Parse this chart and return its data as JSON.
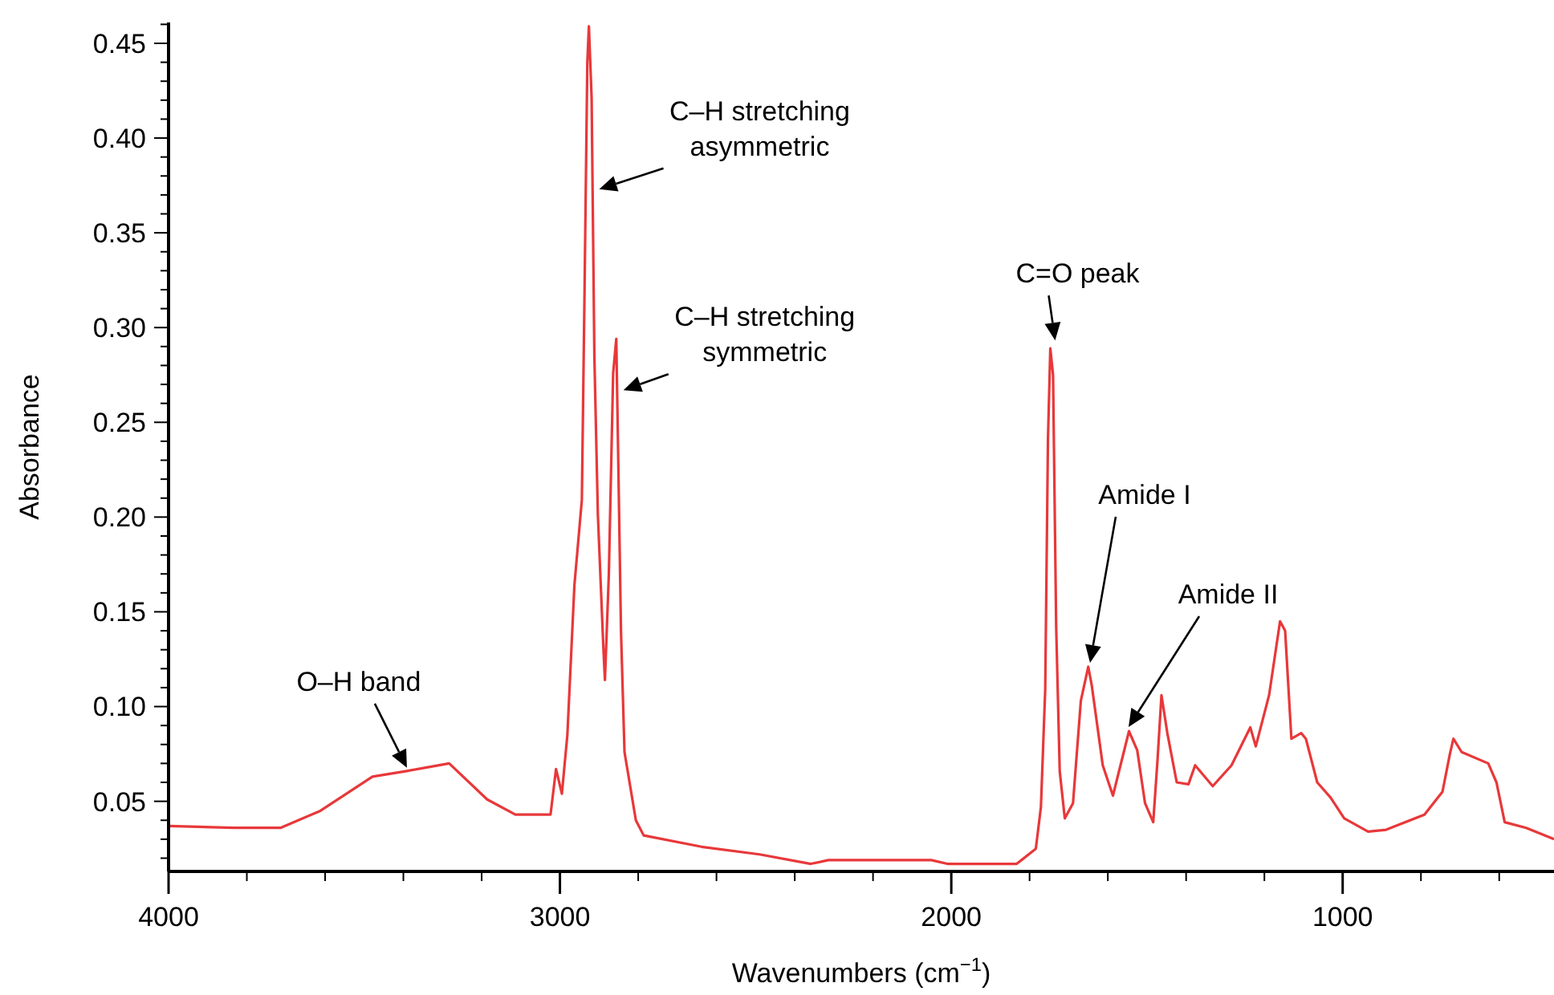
{
  "chart_data": {
    "type": "line",
    "xlabel": "Wavenumbers (cm$^{−1}$)",
    "ylabel": "Absorbance",
    "xlim": [
      4000,
      460
    ],
    "ylim": [
      0.013,
      0.461
    ],
    "xticks": [
      {
        "value": 4000,
        "label": "4000"
      },
      {
        "value": 3800,
        "label": null
      },
      {
        "value": 3600,
        "label": null
      },
      {
        "value": 3400,
        "label": null
      },
      {
        "value": 3200,
        "label": null
      },
      {
        "value": 3000,
        "label": "3000"
      },
      {
        "value": 2800,
        "label": null
      },
      {
        "value": 2600,
        "label": null
      },
      {
        "value": 2400,
        "label": null
      },
      {
        "value": 2200,
        "label": null
      },
      {
        "value": 2000,
        "label": "2000"
      },
      {
        "value": 1800,
        "label": null
      },
      {
        "value": 1600,
        "label": null
      },
      {
        "value": 1400,
        "label": null
      },
      {
        "value": 1200,
        "label": null
      },
      {
        "value": 1000,
        "label": "1000"
      },
      {
        "value": 800,
        "label": null
      },
      {
        "value": 600,
        "label": null
      }
    ],
    "yticks": [
      {
        "value": 0.02,
        "label": null
      },
      {
        "value": 0.03,
        "label": null
      },
      {
        "value": 0.04,
        "label": null
      },
      {
        "value": 0.05,
        "label": "0.05"
      },
      {
        "value": 0.06,
        "label": null
      },
      {
        "value": 0.07,
        "label": null
      },
      {
        "value": 0.08,
        "label": null
      },
      {
        "value": 0.09,
        "label": null
      },
      {
        "value": 0.1,
        "label": "0.10"
      },
      {
        "value": 0.11,
        "label": null
      },
      {
        "value": 0.12,
        "label": null
      },
      {
        "value": 0.13,
        "label": null
      },
      {
        "value": 0.14,
        "label": null
      },
      {
        "value": 0.15,
        "label": "0.15"
      },
      {
        "value": 0.16,
        "label": null
      },
      {
        "value": 0.17,
        "label": null
      },
      {
        "value": 0.18,
        "label": null
      },
      {
        "value": 0.19,
        "label": null
      },
      {
        "value": 0.2,
        "label": "0.20"
      },
      {
        "value": 0.21,
        "label": null
      },
      {
        "value": 0.22,
        "label": null
      },
      {
        "value": 0.23,
        "label": null
      },
      {
        "value": 0.24,
        "label": null
      },
      {
        "value": 0.25,
        "label": "0.25"
      },
      {
        "value": 0.26,
        "label": null
      },
      {
        "value": 0.27,
        "label": null
      },
      {
        "value": 0.28,
        "label": null
      },
      {
        "value": 0.29,
        "label": null
      },
      {
        "value": 0.3,
        "label": "0.30"
      },
      {
        "value": 0.31,
        "label": null
      },
      {
        "value": 0.32,
        "label": null
      },
      {
        "value": 0.33,
        "label": null
      },
      {
        "value": 0.34,
        "label": null
      },
      {
        "value": 0.35,
        "label": "0.35"
      },
      {
        "value": 0.36,
        "label": null
      },
      {
        "value": 0.37,
        "label": null
      },
      {
        "value": 0.38,
        "label": null
      },
      {
        "value": 0.39,
        "label": null
      },
      {
        "value": 0.4,
        "label": "0.40"
      },
      {
        "value": 0.41,
        "label": null
      },
      {
        "value": 0.42,
        "label": null
      },
      {
        "value": 0.43,
        "label": null
      },
      {
        "value": 0.44,
        "label": null
      },
      {
        "value": 0.45,
        "label": "0.45"
      },
      {
        "value": 0.46,
        "label": null
      }
    ],
    "grid": false,
    "marker": "none",
    "line_style": "solid",
    "series": [
      {
        "color": "#e8383a",
        "x": [
          4000,
          3833,
          3714,
          3612,
          3479,
          3391,
          3283,
          3186,
          3114,
          3024,
          3010,
          2995,
          2981,
          2963,
          2944,
          2937,
          2930,
          2926,
          2919,
          2912,
          2903,
          2889,
          2885,
          2875,
          2864,
          2856,
          2852,
          2844,
          2835,
          2806,
          2786,
          2638,
          2490,
          2359,
          2314,
          2051,
          2010,
          1833,
          1784,
          1771,
          1760,
          1753,
          1747,
          1740,
          1732,
          1723,
          1710,
          1689,
          1669,
          1650,
          1641,
          1613,
          1587,
          1546,
          1525,
          1505,
          1484,
          1473,
          1463,
          1448,
          1424,
          1394,
          1377,
          1332,
          1284,
          1236,
          1222,
          1188,
          1160,
          1147,
          1131,
          1106,
          1094,
          1065,
          1031,
          996,
          935,
          889,
          791,
          745,
          726,
          717,
          696,
          628,
          607,
          586,
          531,
          460
        ],
        "values": [
          0.037,
          0.036,
          0.036,
          0.045,
          0.063,
          0.066,
          0.07,
          0.051,
          0.043,
          0.043,
          0.067,
          0.054,
          0.085,
          0.164,
          0.209,
          0.321,
          0.44,
          0.459,
          0.421,
          0.285,
          0.201,
          0.131,
          0.114,
          0.17,
          0.276,
          0.294,
          0.243,
          0.14,
          0.076,
          0.04,
          0.032,
          0.026,
          0.022,
          0.017,
          0.019,
          0.019,
          0.017,
          0.017,
          0.025,
          0.047,
          0.109,
          0.241,
          0.289,
          0.275,
          0.142,
          0.066,
          0.041,
          0.049,
          0.103,
          0.121,
          0.111,
          0.069,
          0.053,
          0.087,
          0.077,
          0.049,
          0.039,
          0.072,
          0.106,
          0.086,
          0.06,
          0.059,
          0.069,
          0.058,
          0.069,
          0.089,
          0.079,
          0.106,
          0.145,
          0.14,
          0.083,
          0.086,
          0.083,
          0.06,
          0.052,
          0.041,
          0.034,
          0.035,
          0.043,
          0.055,
          0.075,
          0.083,
          0.076,
          0.07,
          0.06,
          0.039,
          0.036,
          0.03
        ]
      }
    ],
    "annotations": [
      {
        "text": "C–H stretching\nasymmetric",
        "x": 2916,
        "y": 0.373
      },
      {
        "text": "C–H stretching\nsymmetric",
        "x": 2854,
        "y": 0.267
      },
      {
        "text": "C=O peak",
        "x": 1747,
        "y": 0.289
      },
      "Amide I",
      "Amide II",
      {
        "text": "O–H band",
        "x": 3391,
        "y": 0.066
      }
    ]
  }
}
